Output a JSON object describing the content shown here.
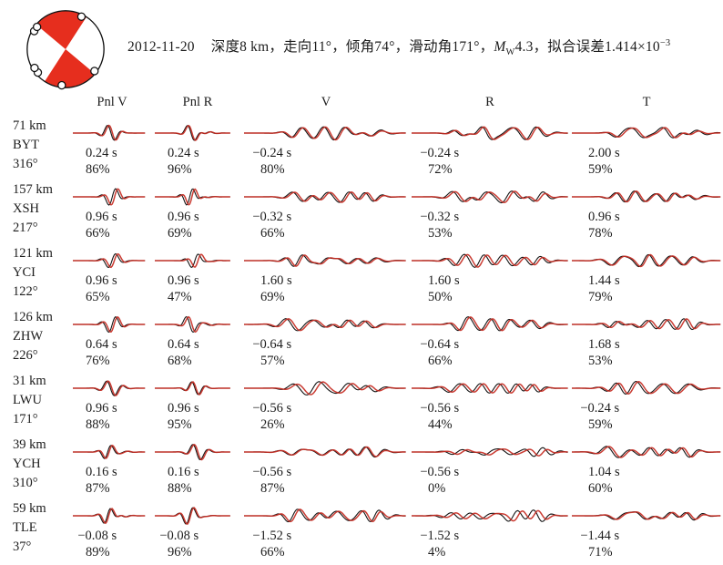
{
  "colors": {
    "observed": "#141414",
    "synthetic": "#c62b22",
    "text": "#1c1c1c",
    "beachball_red": "#e62e1e"
  },
  "header": {
    "date": "2012-11-20",
    "segment1": "深度8 km，走向11°，倾角74°，滑动角171°，",
    "mag_letter": "M",
    "mag_sub": "W",
    "segment2": "4.3，拟合误差1.414×10",
    "exponent": "−3"
  },
  "beachball": {
    "marker_angles_deg": [
      26,
      300,
      308,
      230,
      239,
      186,
      127
    ],
    "red_wedges_deg": [
      [
        -50,
        33
      ],
      [
        130,
        213
      ]
    ]
  },
  "chart_data": {
    "type": "line",
    "legend": {
      "observed": "black",
      "synthetic": "red"
    },
    "columns": [
      "Pnl V",
      "Pnl R",
      "V",
      "R",
      "T"
    ],
    "event": {
      "date": "2012-11-20",
      "depth_km": 8,
      "strike_deg": 11,
      "dip_deg": 74,
      "rake_deg": 171,
      "Mw": 4.3,
      "misfit": "1.414×10−3"
    },
    "stations": [
      {
        "distance": "71 km",
        "code": "BYT",
        "azimuth": "316°",
        "cells": [
          {
            "shift": "0.24 s",
            "fit": "86%"
          },
          {
            "shift": "0.24 s",
            "fit": "96%"
          },
          {
            "shift": "−0.24 s",
            "fit": "80%"
          },
          {
            "shift": "−0.24 s",
            "fit": "72%"
          },
          {
            "shift": "2.00 s",
            "fit": "59%"
          }
        ]
      },
      {
        "distance": "157 km",
        "code": "XSH",
        "azimuth": "217°",
        "cells": [
          {
            "shift": "0.96 s",
            "fit": "66%"
          },
          {
            "shift": "0.96 s",
            "fit": "69%"
          },
          {
            "shift": "−0.32 s",
            "fit": "66%"
          },
          {
            "shift": "−0.32 s",
            "fit": "53%"
          },
          {
            "shift": "0.96 s",
            "fit": "78%"
          }
        ]
      },
      {
        "distance": "121 km",
        "code": "YCI",
        "azimuth": "122°",
        "cells": [
          {
            "shift": "0.96 s",
            "fit": "65%"
          },
          {
            "shift": "0.96 s",
            "fit": "47%"
          },
          {
            "shift": "1.60 s",
            "fit": "69%"
          },
          {
            "shift": "1.60 s",
            "fit": "50%"
          },
          {
            "shift": "1.44 s",
            "fit": "79%"
          }
        ]
      },
      {
        "distance": "126 km",
        "code": "ZHW",
        "azimuth": "226°",
        "cells": [
          {
            "shift": "0.64 s",
            "fit": "76%"
          },
          {
            "shift": "0.64 s",
            "fit": "68%"
          },
          {
            "shift": "−0.64 s",
            "fit": "57%"
          },
          {
            "shift": "−0.64 s",
            "fit": "66%"
          },
          {
            "shift": "1.68 s",
            "fit": "53%"
          }
        ]
      },
      {
        "distance": "31 km",
        "code": "LWU",
        "azimuth": "171°",
        "cells": [
          {
            "shift": "0.96 s",
            "fit": "88%"
          },
          {
            "shift": "0.96 s",
            "fit": "95%"
          },
          {
            "shift": "−0.56 s",
            "fit": "26%"
          },
          {
            "shift": "−0.56 s",
            "fit": "44%"
          },
          {
            "shift": "−0.24 s",
            "fit": "59%"
          }
        ]
      },
      {
        "distance": "39 km",
        "code": "YCH",
        "azimuth": "310°",
        "cells": [
          {
            "shift": "0.16 s",
            "fit": "87%"
          },
          {
            "shift": "0.16 s",
            "fit": "88%"
          },
          {
            "shift": "−0.56 s",
            "fit": "87%"
          },
          {
            "shift": "−0.56 s",
            "fit": "0%"
          },
          {
            "shift": "1.04 s",
            "fit": "60%"
          }
        ]
      },
      {
        "distance": "59 km",
        "code": "TLE",
        "azimuth": "37°",
        "cells": [
          {
            "shift": "−0.08 s",
            "fit": "89%"
          },
          {
            "shift": "−0.08 s",
            "fit": "96%"
          },
          {
            "shift": "−1.52 s",
            "fit": "66%"
          },
          {
            "shift": "−1.52 s",
            "fit": "4%"
          },
          {
            "shift": "−1.44 s",
            "fit": "71%"
          }
        ]
      }
    ]
  }
}
